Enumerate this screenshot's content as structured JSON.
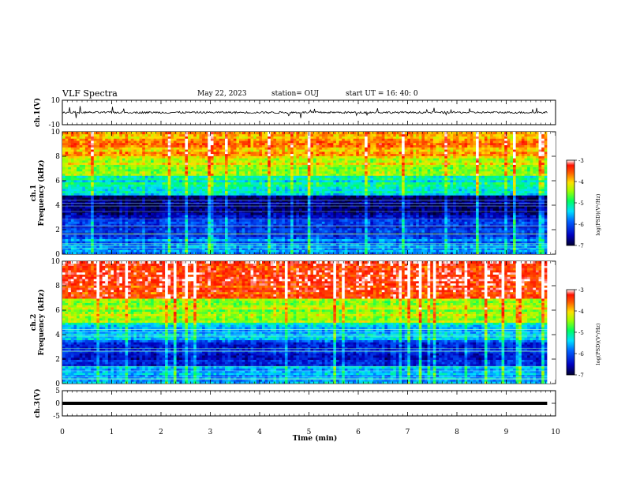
{
  "header": {
    "title": "VLF Spectra",
    "date": "May 22, 2023",
    "station": "station= OUJ",
    "start": "start  UT  =   16: 40: 0"
  },
  "chart_data": [
    {
      "type": "line",
      "panel": "ch1_waveform",
      "ylabel": "ch.1(V)",
      "ylim": [
        -10,
        10
      ],
      "yticks": [
        "10",
        "-10"
      ],
      "xlim": [
        0,
        10
      ],
      "signal_level_approx": 0,
      "spread_approx": 0.8
    },
    {
      "type": "heatmap",
      "panel": "ch1_spectrogram",
      "ylabel": "ch.1\nFrequency (kHz)",
      "ylim": [
        0,
        10
      ],
      "yticks": [
        "0",
        "2",
        "4",
        "6",
        "8",
        "10"
      ],
      "xlim": [
        0,
        10
      ],
      "colorbar": {
        "label": "log(PSD)(V²/Hz)",
        "ticks": [
          "-3",
          "-4",
          "-5",
          "-6",
          "-7"
        ],
        "range": [
          -7,
          -3
        ]
      },
      "band_levels_approx": [
        {
          "freq_range": [
            0,
            1.5
          ],
          "level": -5.8
        },
        {
          "freq_range": [
            1.5,
            3.2
          ],
          "level": -6.3
        },
        {
          "freq_range": [
            3.2,
            4.8
          ],
          "level": -6.7
        },
        {
          "freq_range": [
            4.8,
            6.5
          ],
          "level": -5.2
        },
        {
          "freq_range": [
            6.5,
            8.0
          ],
          "level": -4.3
        },
        {
          "freq_range": [
            8.0,
            10
          ],
          "level": -3.8
        }
      ]
    },
    {
      "type": "heatmap",
      "panel": "ch2_spectrogram",
      "ylabel": "ch.2\nFrequency (kHz)",
      "ylim": [
        0,
        10
      ],
      "yticks": [
        "0",
        "2",
        "4",
        "6",
        "8",
        "10"
      ],
      "xlim": [
        0,
        10
      ],
      "colorbar": {
        "label": "log(PSD)(V²/Hz)",
        "ticks": [
          "-3",
          "-4",
          "-5",
          "-6",
          "-7"
        ],
        "range": [
          -7,
          -3
        ]
      },
      "band_levels_approx": [
        {
          "freq_range": [
            0,
            1.5
          ],
          "level": -5.6
        },
        {
          "freq_range": [
            1.5,
            3.5
          ],
          "level": -6.2
        },
        {
          "freq_range": [
            3.5,
            5.0
          ],
          "level": -5.4
        },
        {
          "freq_range": [
            5.0,
            7.0
          ],
          "level": -4.4
        },
        {
          "freq_range": [
            7.0,
            10
          ],
          "level": -3.4
        }
      ]
    },
    {
      "type": "line",
      "panel": "ch3_waveform",
      "ylabel": "ch.3(V)",
      "ylim": [
        -5,
        5
      ],
      "yticks": [
        "5",
        "0",
        "-5"
      ],
      "xlim": [
        0,
        10
      ],
      "signal_level_approx": 0
    }
  ],
  "x_axis": {
    "label": "Time (min)",
    "ticks": [
      "0",
      "1",
      "2",
      "3",
      "4",
      "5",
      "6",
      "7",
      "8",
      "9",
      "10"
    ],
    "range": [
      0,
      10
    ],
    "data_extent_max": 9.83
  },
  "colors": {
    "waveform": "#000000",
    "frame": "#000000"
  }
}
